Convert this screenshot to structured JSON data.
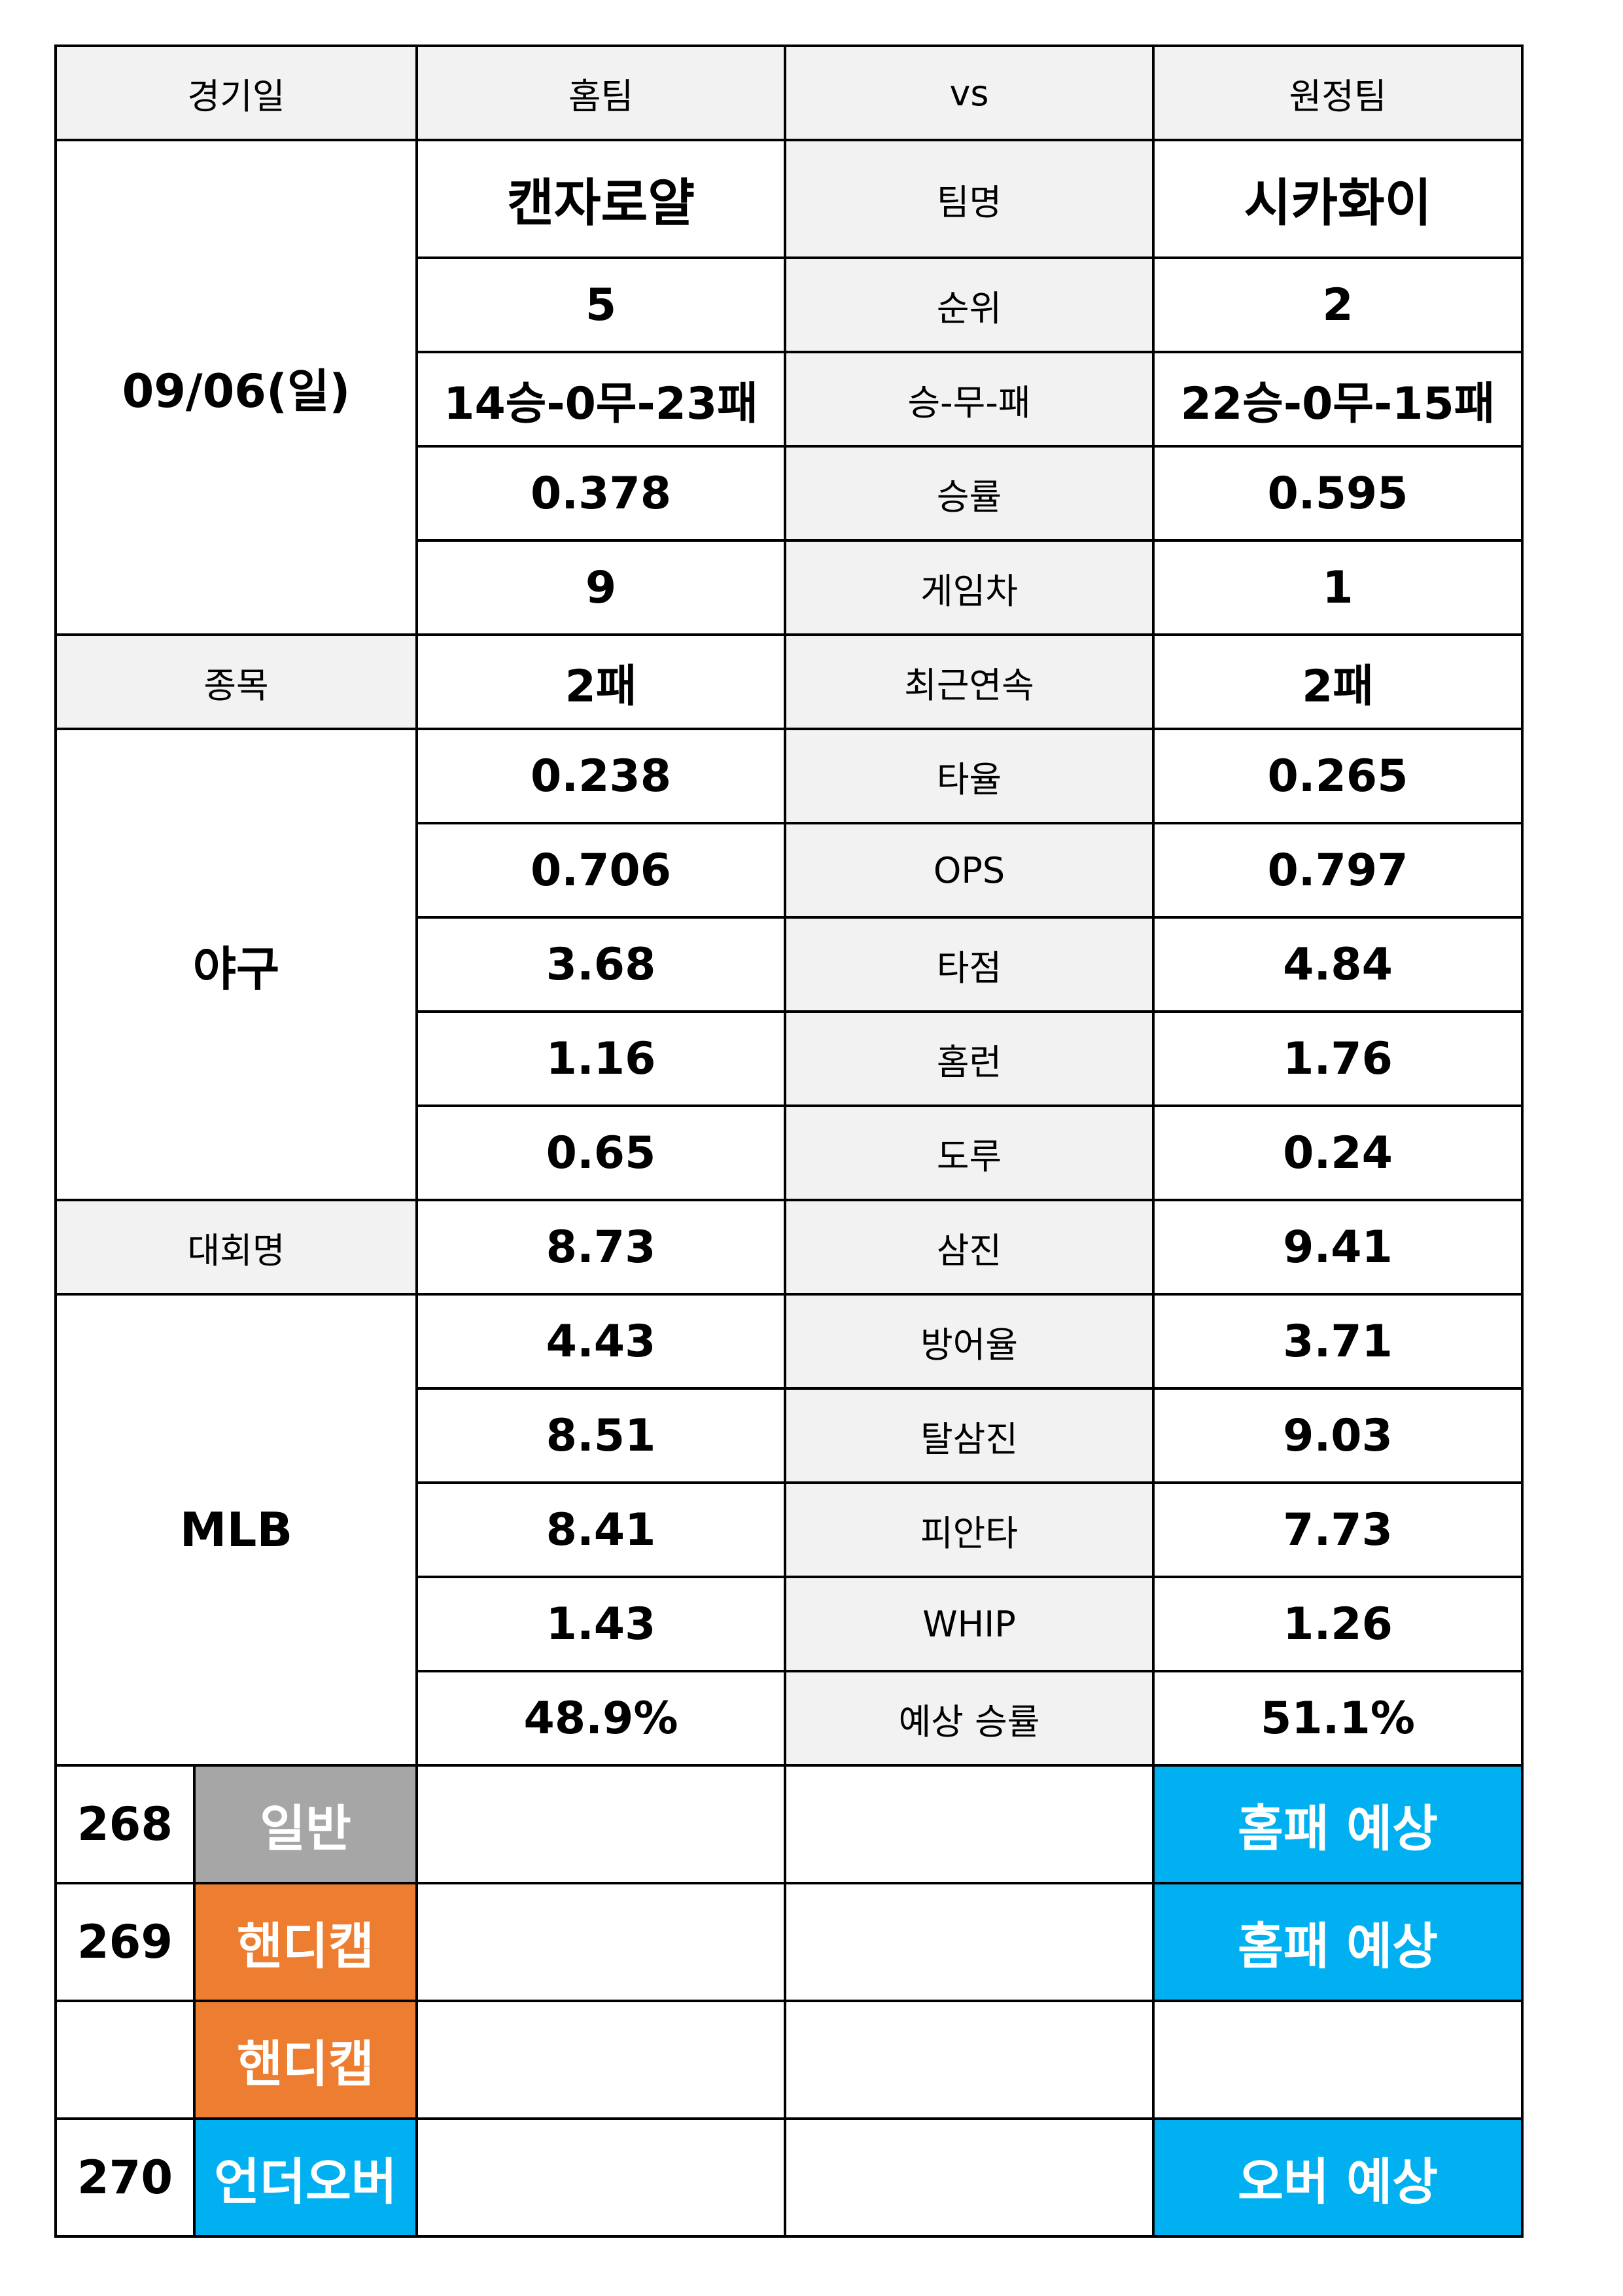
{
  "header": {
    "date_col": "경기일",
    "home_col": "홈팀",
    "vs_col": "vs",
    "away_col": "원정팀"
  },
  "match": {
    "date": "09/06(일)",
    "sport_label": "종목",
    "sport": "야구",
    "league_label": "대회명",
    "league": "MLB",
    "home_team": "캔자로얄",
    "away_team": "시카화이"
  },
  "stats": [
    {
      "label": "팀명",
      "home": "캔자로얄",
      "away": "시카화이"
    },
    {
      "label": "순위",
      "home": "5",
      "away": "2"
    },
    {
      "label": "승-무-패",
      "home": "14승-0무-23패",
      "away": "22승-0무-15패"
    },
    {
      "label": "승률",
      "home": "0.378",
      "away": "0.595"
    },
    {
      "label": "게임차",
      "home": "9",
      "away": "1"
    },
    {
      "label": "최근연속",
      "home": "2패",
      "away": "2패"
    },
    {
      "label": "타율",
      "home": "0.238",
      "away": "0.265"
    },
    {
      "label": "OPS",
      "home": "0.706",
      "away": "0.797"
    },
    {
      "label": "타점",
      "home": "3.68",
      "away": "4.84"
    },
    {
      "label": "홈런",
      "home": "1.16",
      "away": "1.76"
    },
    {
      "label": "도루",
      "home": "0.65",
      "away": "0.24"
    },
    {
      "label": "삼진",
      "home": "8.73",
      "away": "9.41"
    },
    {
      "label": "방어율",
      "home": "4.43",
      "away": "3.71"
    },
    {
      "label": "탈삼진",
      "home": "8.51",
      "away": "9.03"
    },
    {
      "label": "피안타",
      "home": "8.41",
      "away": "7.73"
    },
    {
      "label": "WHIP",
      "home": "1.43",
      "away": "1.26"
    },
    {
      "label": "예상 승률",
      "home": "48.9%",
      "away": "51.1%"
    }
  ],
  "bets": [
    {
      "number": "268",
      "type": "일반",
      "type_color": "#a6a6a6",
      "prediction": "홈패 예상"
    },
    {
      "number": "269",
      "type": "핸디캡",
      "type_color": "#ed7d31",
      "prediction": "홈패 예상"
    },
    {
      "number": "",
      "type": "핸디캡",
      "type_color": "#ed7d31",
      "prediction": ""
    },
    {
      "number": "270",
      "type": "언더오버",
      "type_color": "#00b0f0",
      "prediction": "오버 예상"
    }
  ]
}
